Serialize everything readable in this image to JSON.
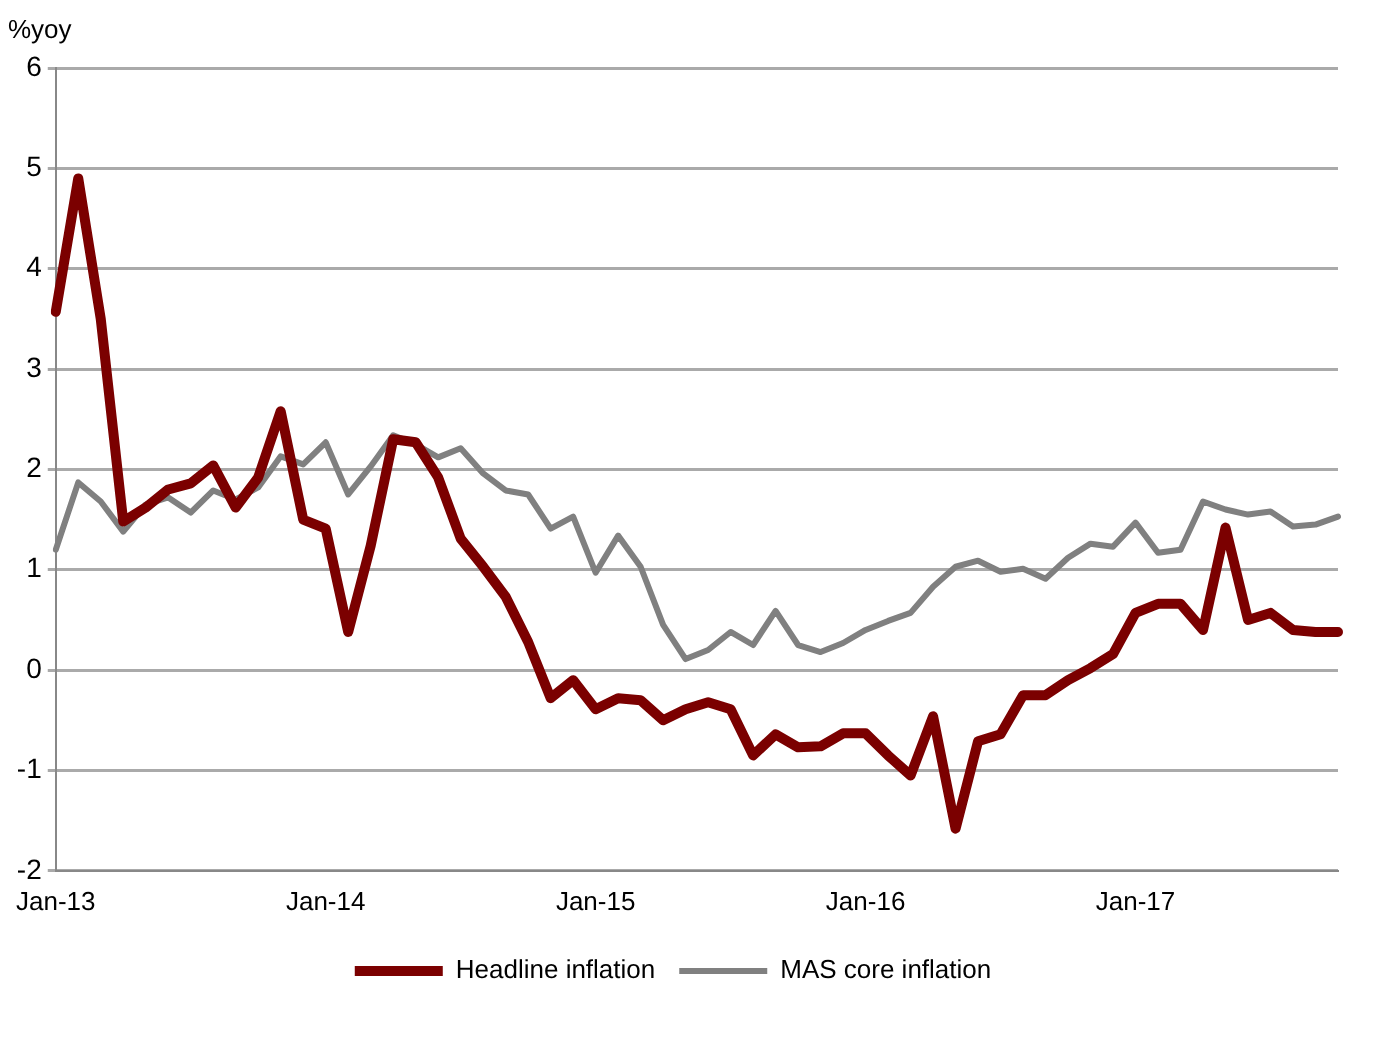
{
  "chart_data": {
    "type": "line",
    "ylabel": "%yoy",
    "categories": [
      "Jan-13",
      null,
      null,
      null,
      null,
      null,
      null,
      null,
      null,
      null,
      null,
      null,
      "Jan-14",
      null,
      null,
      null,
      null,
      null,
      null,
      null,
      null,
      null,
      null,
      null,
      "Jan-15",
      null,
      null,
      null,
      null,
      null,
      null,
      null,
      null,
      null,
      null,
      null,
      "Jan-16",
      null,
      null,
      null,
      null,
      null,
      null,
      null,
      null,
      null,
      null,
      null,
      "Jan-17",
      null,
      null,
      null,
      null,
      null,
      null,
      null,
      null,
      null
    ],
    "series": [
      {
        "name": "Headline inflation",
        "color": "#7b0000",
        "values": [
          3.57,
          4.9,
          3.5,
          1.48,
          1.62,
          1.8,
          1.86,
          2.04,
          1.62,
          1.92,
          2.58,
          1.5,
          1.41,
          0.38,
          1.24,
          2.3,
          2.27,
          1.92,
          1.31,
          1.03,
          0.73,
          0.28,
          -0.28,
          -0.1,
          -0.39,
          -0.28,
          -0.3,
          -0.5,
          -0.39,
          -0.32,
          -0.39,
          -0.85,
          -0.64,
          -0.77,
          -0.76,
          -0.63,
          -0.63,
          -0.85,
          -1.05,
          -0.46,
          -1.58,
          -0.71,
          -0.64,
          -0.25,
          -0.25,
          -0.1,
          0.02,
          0.16,
          0.57,
          0.66,
          0.66,
          0.4,
          1.42,
          0.5,
          0.57,
          0.4,
          0.38,
          0.38
        ]
      },
      {
        "name": "MAS core inflation",
        "color": "#808080",
        "values": [
          1.2,
          1.87,
          1.68,
          1.38,
          1.65,
          1.72,
          1.57,
          1.79,
          1.7,
          1.82,
          2.13,
          2.05,
          2.27,
          1.75,
          2.03,
          2.34,
          2.25,
          2.12,
          2.21,
          1.96,
          1.79,
          1.75,
          1.41,
          1.53,
          0.97,
          1.34,
          1.03,
          0.45,
          0.11,
          0.2,
          0.38,
          0.25,
          0.59,
          0.25,
          0.18,
          0.27,
          0.4,
          0.49,
          0.57,
          0.83,
          1.03,
          1.09,
          0.98,
          1.01,
          0.91,
          1.12,
          1.26,
          1.23,
          1.47,
          1.17,
          1.2,
          1.68,
          1.6,
          1.55,
          1.58,
          1.43,
          1.45,
          1.53
        ]
      }
    ],
    "ylim": [
      -2,
      6
    ],
    "yticks": [
      -2,
      -1,
      0,
      1,
      2,
      3,
      4,
      5,
      6
    ],
    "grid": "y",
    "legend": "bottom",
    "marker": "none",
    "line_style": "solid"
  }
}
